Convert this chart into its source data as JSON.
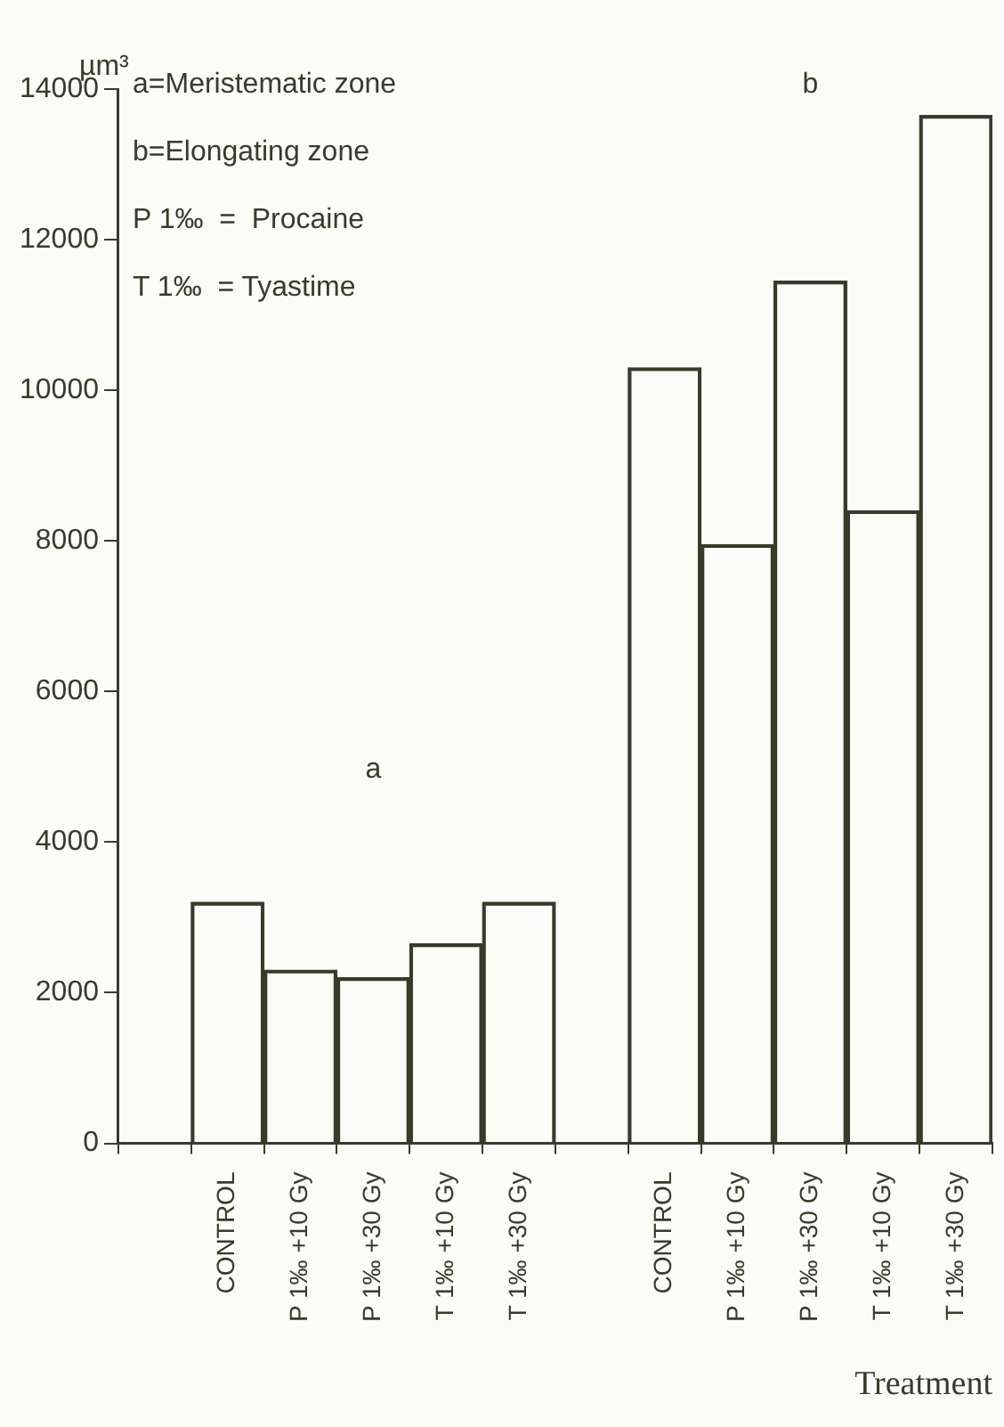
{
  "chart_data": {
    "type": "bar",
    "ylabel": "µm³",
    "xlabel": "Treatment",
    "categories": [
      null,
      "CONTROL",
      "P 1‰ +10 Gy",
      "P 1‰ +30 Gy",
      "T 1‰ +10 Gy",
      "T 1‰ +30 Gy",
      null,
      "CONTROL",
      "P 1‰ +10 Gy",
      "P 1‰ +30 Gy",
      "T 1‰ +10 Gy",
      "T 1‰ +30 Gy"
    ],
    "values": [
      null,
      3200,
      2300,
      2200,
      2650,
      3200,
      null,
      10300,
      7950,
      11450,
      8400,
      13650
    ],
    "color": "#3a3a2a",
    "ylim": [
      0,
      14000
    ],
    "yticks": [
      0,
      2000,
      4000,
      6000,
      8000,
      10000,
      12000,
      14000
    ],
    "grid": false,
    "legend": false,
    "annotations": [
      "a=Meristematic zone",
      "b=Elongating zone",
      "P 1‰  =  Procaine",
      "T 1‰  = Tyastime",
      "a",
      "b"
    ]
  }
}
